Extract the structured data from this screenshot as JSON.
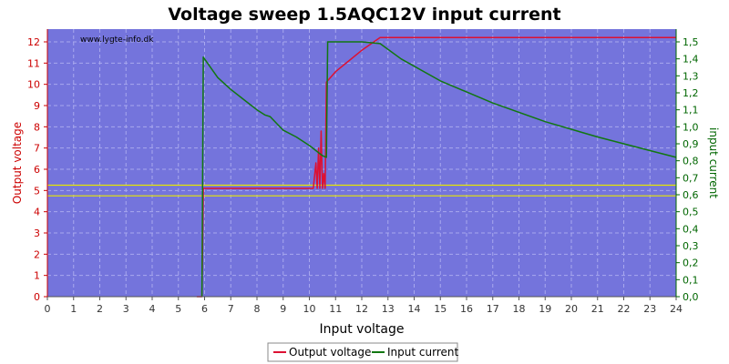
{
  "chart_data": {
    "type": "line",
    "title": "Voltage sweep 1.5AQC12V input current",
    "watermark": "www.lygte-info.dk",
    "xlabel": "Input voltage",
    "ylabel_left": "Output voltage",
    "ylabel_right": "input current",
    "xlim": [
      0,
      24
    ],
    "ylim_left": [
      0,
      12.6
    ],
    "ylim_right": [
      0,
      1.575
    ],
    "x_ticks": [
      "0",
      "1",
      "2",
      "3",
      "4",
      "5",
      "6",
      "7",
      "8",
      "9",
      "10",
      "11",
      "12",
      "13",
      "14",
      "15",
      "16",
      "17",
      "18",
      "19",
      "20",
      "21",
      "22",
      "23",
      "24"
    ],
    "y_left_ticks": [
      "0",
      "1",
      "2",
      "3",
      "4",
      "5",
      "6",
      "7",
      "8",
      "9",
      "10",
      "11",
      "12"
    ],
    "y_right_ticks": [
      "0,0",
      "0,1",
      "0,2",
      "0,3",
      "0,4",
      "0,5",
      "0,6",
      "0,7",
      "0,8",
      "0,9",
      "1,0",
      "1,1",
      "1,2",
      "1,3",
      "1,4",
      "1,5"
    ],
    "grid": true,
    "legend_position": "bottom-center",
    "reference_lines_left": [
      4.75,
      5.25
    ],
    "colors": {
      "plot_bg": "#7474dc",
      "grid": "#a8a8ee",
      "output_voltage": "#dd1133",
      "input_current": "#117711",
      "reference": "#e8e800",
      "left_axis": "#cc0000",
      "right_axis": "#006600"
    },
    "series": [
      {
        "name": "Output voltage",
        "axis": "left",
        "points": [
          [
            5.7,
            0
          ],
          [
            5.9,
            0
          ],
          [
            5.95,
            5.1
          ],
          [
            7,
            5.1
          ],
          [
            9,
            5.1
          ],
          [
            10.15,
            5.1
          ],
          [
            10.25,
            6.3
          ],
          [
            10.3,
            5.1
          ],
          [
            10.35,
            7.0
          ],
          [
            10.4,
            5.1
          ],
          [
            10.45,
            7.8
          ],
          [
            10.5,
            5.1
          ],
          [
            10.55,
            5.8
          ],
          [
            10.6,
            5.1
          ],
          [
            10.65,
            10.1
          ],
          [
            11,
            10.6
          ],
          [
            12,
            11.6
          ],
          [
            12.7,
            12.2
          ],
          [
            24,
            12.2
          ]
        ]
      },
      {
        "name": "Input current",
        "axis": "right",
        "points": [
          [
            5.9,
            0
          ],
          [
            5.95,
            1.41
          ],
          [
            6.5,
            1.29
          ],
          [
            7,
            1.22
          ],
          [
            7.5,
            1.16
          ],
          [
            8,
            1.1
          ],
          [
            8.3,
            1.07
          ],
          [
            8.5,
            1.06
          ],
          [
            9,
            0.98
          ],
          [
            9.5,
            0.94
          ],
          [
            10,
            0.89
          ],
          [
            10.5,
            0.83
          ],
          [
            10.65,
            0.82
          ],
          [
            10.7,
            1.5
          ],
          [
            12,
            1.5
          ],
          [
            12.7,
            1.49
          ],
          [
            13.5,
            1.4
          ],
          [
            15,
            1.27
          ],
          [
            17,
            1.14
          ],
          [
            19,
            1.03
          ],
          [
            21,
            0.94
          ],
          [
            23,
            0.86
          ],
          [
            24,
            0.82
          ]
        ]
      }
    ]
  }
}
